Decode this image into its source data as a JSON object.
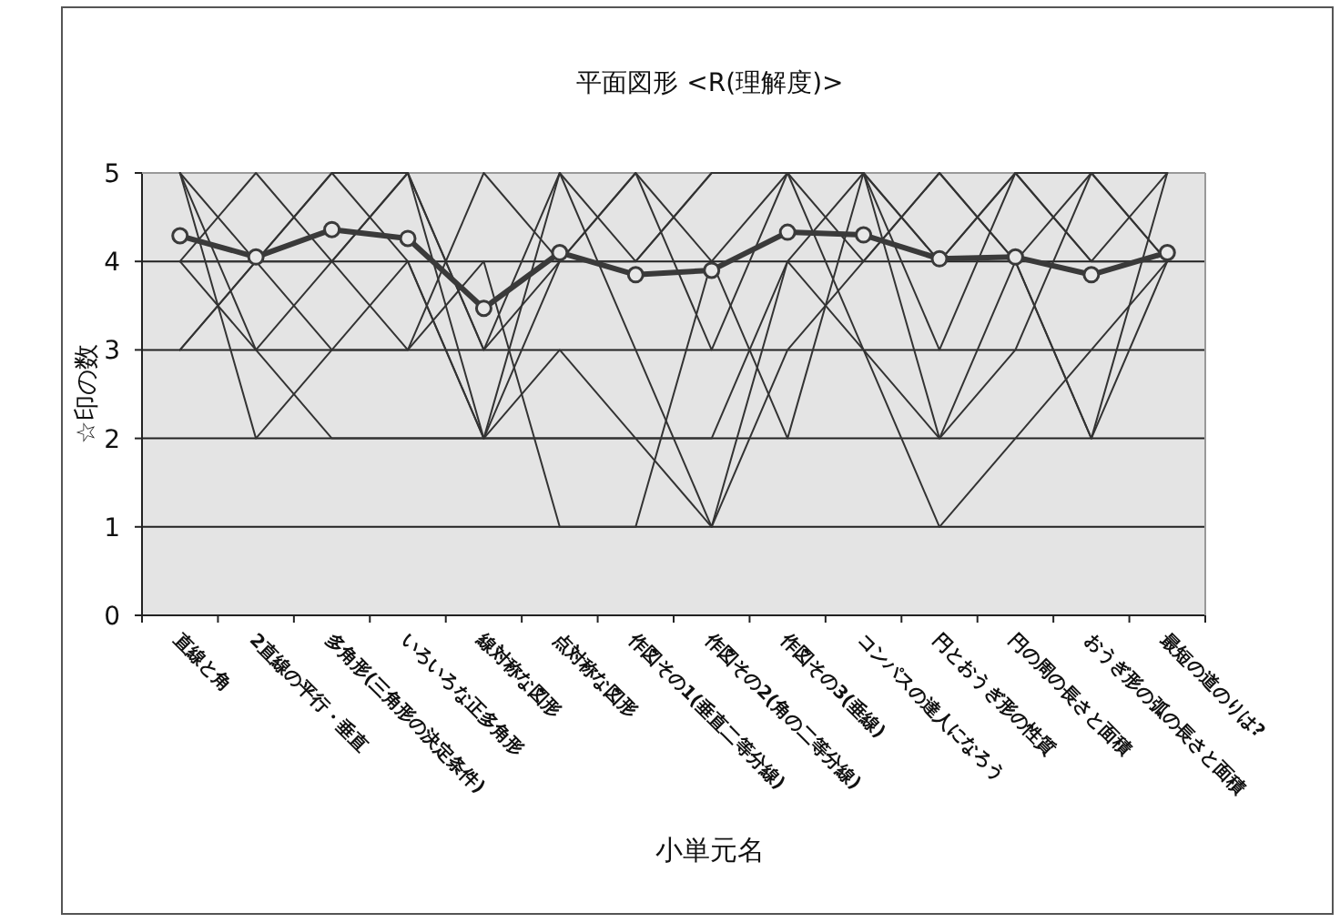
{
  "chart_data": {
    "type": "line",
    "title": "平面図形 <R(理解度)>",
    "xlabel": "小単元名",
    "ylabel": "☆印の数",
    "categories": [
      "直線と角",
      "2直線の平行・垂直",
      "多角形(三角形の決定条件)",
      "いろいろな正多角形",
      "線対称な図形",
      "点対称な図形",
      "作図その1(垂直二等分線)",
      "作図その2(角の二等分線)",
      "作図その3(垂線)",
      "コンパスの達人になろう",
      "円とおうぎ形の性質",
      "円の周の長さと面積",
      "おうぎ形の弧の長さと面積",
      "最短の道のりは?"
    ],
    "ylim": [
      0,
      5
    ],
    "yticks": [
      0,
      1,
      2,
      3,
      4,
      5
    ],
    "grid": "y",
    "series": [
      {
        "color": "#333333",
        "marker": "none",
        "values": [
          5,
          4,
          5,
          5,
          3,
          5,
          4,
          5,
          5,
          5,
          4,
          5,
          5,
          5
        ]
      },
      {
        "color": "#333333",
        "marker": "none",
        "values": [
          4,
          5,
          4,
          5,
          2,
          4,
          5,
          4,
          5,
          5,
          4,
          5,
          4,
          5
        ]
      },
      {
        "color": "#333333",
        "marker": "none",
        "values": [
          3,
          4,
          5,
          4,
          2,
          5,
          3,
          1,
          4,
          5,
          3,
          5,
          4,
          4
        ]
      },
      {
        "color": "#333333",
        "marker": "none",
        "values": [
          5,
          2,
          3,
          4,
          2,
          2,
          2,
          2,
          4,
          3,
          1,
          2,
          3,
          4
        ]
      },
      {
        "color": "#333333",
        "marker": "none",
        "values": [
          4,
          3,
          2,
          2,
          2,
          3,
          2,
          1,
          3,
          4,
          5,
          4,
          2,
          4
        ]
      },
      {
        "color": "#333333",
        "marker": "none",
        "values": [
          3,
          4,
          4,
          3,
          4,
          1,
          1,
          4,
          2,
          5,
          2,
          3,
          5,
          4
        ]
      },
      {
        "color": "#333333",
        "marker": "none",
        "values": [
          5,
          3,
          4,
          5,
          3,
          4,
          4,
          5,
          5,
          3,
          2,
          4,
          2,
          5
        ]
      },
      {
        "color": "#333333",
        "marker": "none",
        "values": [
          4,
          4,
          3,
          3,
          5,
          4,
          5,
          3,
          5,
          4,
          5,
          4,
          5,
          4
        ]
      },
      {
        "color": "#3a3a3a",
        "marker": "circle",
        "values": [
          4.29,
          4.05,
          4.36,
          4.26,
          3.47,
          4.1,
          3.85,
          3.9,
          4.33,
          4.3,
          4.03,
          4.05,
          3.85,
          4.1
        ]
      }
    ]
  }
}
